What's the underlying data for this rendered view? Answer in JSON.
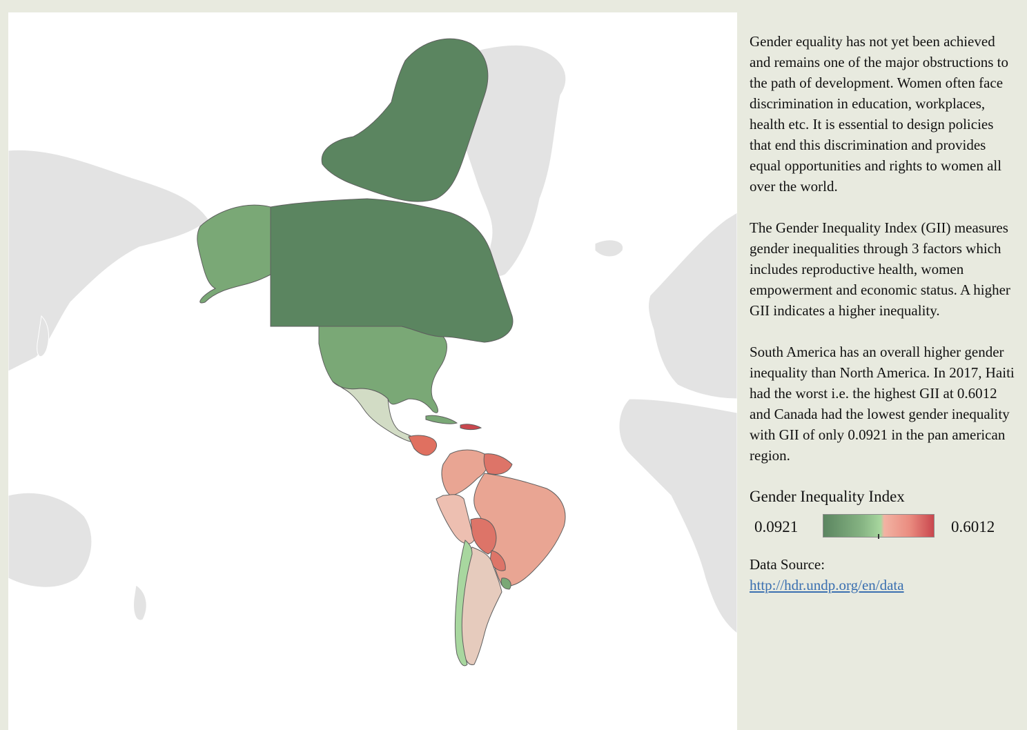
{
  "map": {
    "colors": {
      "background_land": "#e3e3e3",
      "land_border": "#ffffff",
      "ocean": "#ffffff",
      "gii_low": "#5b8560",
      "gii_mid_low": "#7aa876",
      "gii_light_green": "#a8d79f",
      "gii_mid_high": "#e9a593",
      "gii_high": "#c9474e"
    }
  },
  "text": {
    "para1": "Gender equality has not yet been achieved and remains one of the major obstructions to the path of development. Women often face discrimination in education, workplaces, health etc. It is essential to design policies that end this discrimination and provides equal opportunities and rights to women all over the world.",
    "para2": "The Gender Inequality Index (GII) measures gender inequalities through 3 factors which includes reproductive health, women empowerment and economic status. A higher GII indicates a higher inequality.",
    "para3": "South America has an overall higher gender inequality than North America. In 2017, Haiti had the worst i.e. the highest GII at 0.6012 and Canada had the lowest gender inequality with GII of only 0.0921 in the pan american region."
  },
  "legend": {
    "title": "Gender Inequality Index",
    "min": "0.0921",
    "max": "0.6012"
  },
  "source": {
    "label": "Data Source:",
    "link": "http://hdr.undp.org/en/data"
  }
}
